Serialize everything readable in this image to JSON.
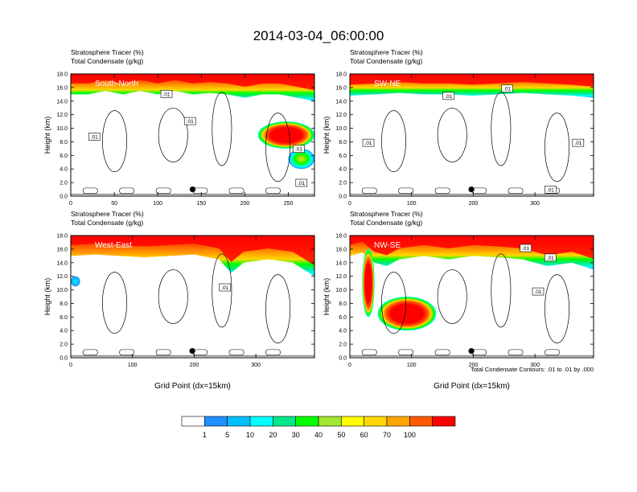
{
  "figure": {
    "title": "2014-03-04_06:00:00",
    "contour_note": "Total Condensate Contours: .01 to .01 by .000"
  },
  "colorbar": {
    "labels": [
      "1",
      "5",
      "10",
      "20",
      "30",
      "40",
      "50",
      "60",
      "70",
      "100"
    ],
    "colors": [
      "#ffffff",
      "#1e90ff",
      "#00bfff",
      "#00ffff",
      "#00e88a",
      "#00ff00",
      "#a0e632",
      "#ffff00",
      "#ffd700",
      "#ffa500",
      "#ff5a00",
      "#ff0000"
    ]
  },
  "chart_data": [
    {
      "type": "heatmap",
      "panel": "South-North",
      "title_line1": "Stratosphere Tracer   (%)",
      "title_line2": "Total Condensate   (g/kg)",
      "ylabel": "Height (km)",
      "xlabel": "",
      "xlim": [
        0,
        280
      ],
      "ylim": [
        0,
        18
      ],
      "xticks": [
        "0",
        "50",
        "100",
        "150",
        "200",
        "250"
      ],
      "yticks": [
        "0.0",
        "2.0",
        "4.0",
        "6.0",
        "8.0",
        "10.0",
        "12.0",
        "14.0",
        "16.0",
        "18.0"
      ],
      "contour_labels": [
        ".01",
        ".01",
        ".01",
        ".01",
        ".01"
      ],
      "contour_label_pos": [
        [
          110,
          15
        ],
        [
          137,
          11
        ],
        [
          27,
          8.7
        ],
        [
          262,
          6.9
        ],
        [
          265,
          1.9
        ]
      ],
      "marker": [
        140,
        1.0
      ],
      "tracer_top": [
        [
          0,
          15.0
        ],
        [
          20,
          15.0
        ],
        [
          40,
          15.5
        ],
        [
          60,
          15.0
        ],
        [
          80,
          15.5
        ],
        [
          100,
          15.0
        ],
        [
          120,
          15.5
        ],
        [
          140,
          15.0
        ],
        [
          160,
          15.2
        ],
        [
          180,
          15.0
        ],
        [
          200,
          14.5
        ],
        [
          220,
          15.0
        ],
        [
          240,
          15.0
        ],
        [
          260,
          14.5
        ],
        [
          280,
          14.0
        ]
      ],
      "tracer_blobs": [
        {
          "x": [
            215,
            280
          ],
          "y": [
            7.0,
            11.0
          ],
          "level": 90
        },
        {
          "x": [
            250,
            280
          ],
          "y": [
            4.0,
            7.0
          ],
          "level": 60
        }
      ]
    },
    {
      "type": "heatmap",
      "panel": "SW-NE",
      "title_line1": "Stratosphere Tracer   (%)",
      "title_line2": "Total Condensate   (g/kg)",
      "ylabel": "Height (km)",
      "xlabel": "",
      "xlim": [
        0,
        395
      ],
      "ylim": [
        0,
        18
      ],
      "xticks": [
        "0",
        "100",
        "200",
        "300"
      ],
      "yticks": [
        "0.0",
        "2.0",
        "4.0",
        "6.0",
        "8.0",
        "10.0",
        "12.0",
        "14.0",
        "16.0",
        "18.0"
      ],
      "contour_labels": [
        ".01",
        ".01",
        ".01",
        ".01",
        ".01"
      ],
      "contour_label_pos": [
        [
          255,
          15.8
        ],
        [
          160,
          14.7
        ],
        [
          30,
          7.8
        ],
        [
          370,
          7.8
        ],
        [
          325,
          0.9
        ]
      ],
      "marker": [
        197,
        1.0
      ],
      "tracer_top": [
        [
          0,
          14.8
        ],
        [
          40,
          15.0
        ],
        [
          80,
          15.2
        ],
        [
          120,
          15.0
        ],
        [
          160,
          15.0
        ],
        [
          200,
          14.8
        ],
        [
          240,
          15.0
        ],
        [
          280,
          15.2
        ],
        [
          320,
          15.0
        ],
        [
          360,
          14.8
        ],
        [
          395,
          14.5
        ]
      ],
      "tracer_blobs": []
    },
    {
      "type": "heatmap",
      "panel": "West-East",
      "title_line1": "Stratosphere Tracer   (%)",
      "title_line2": "Total Condensate   (g/kg)",
      "ylabel": "Height (km)",
      "xlabel": "Grid Point (dx=15km)",
      "xlim": [
        0,
        395
      ],
      "ylim": [
        0,
        18
      ],
      "xticks": [
        "0",
        "100",
        "200",
        "300"
      ],
      "yticks": [
        "0.0",
        "2.0",
        "4.0",
        "6.0",
        "8.0",
        "10.0",
        "12.0",
        "14.0",
        "16.0",
        "18.0"
      ],
      "contour_labels": [
        ".01"
      ],
      "contour_label_pos": [
        [
          250,
          10.3
        ]
      ],
      "marker": [
        197,
        1.0
      ],
      "tracer_top": [
        [
          0,
          15.0
        ],
        [
          40,
          15.2
        ],
        [
          80,
          15.0
        ],
        [
          120,
          14.8
        ],
        [
          160,
          15.0
        ],
        [
          200,
          15.2
        ],
        [
          240,
          14.5
        ],
        [
          260,
          12.5
        ],
        [
          280,
          14.0
        ],
        [
          320,
          14.5
        ],
        [
          360,
          14.0
        ],
        [
          395,
          12.0
        ]
      ],
      "tracer_blobs": [
        {
          "x": [
            0,
            15
          ],
          "y": [
            10.5,
            12.0
          ],
          "level": 5
        }
      ]
    },
    {
      "type": "heatmap",
      "panel": "NW-SE",
      "title_line1": "Stratosphere Tracer   (%)",
      "title_line2": "Total Condensate   (g/kg)",
      "ylabel": "Height (km)",
      "xlabel": "Grid Point (dx=15km)",
      "xlim": [
        0,
        395
      ],
      "ylim": [
        0,
        18
      ],
      "xticks": [
        "0",
        "100",
        "200",
        "300"
      ],
      "yticks": [
        "0.0",
        "2.0",
        "4.0",
        "6.0",
        "8.0",
        "10.0",
        "12.0",
        "14.0",
        "16.0",
        "18.0"
      ],
      "contour_labels": [
        ".01",
        ".01",
        ".01"
      ],
      "contour_label_pos": [
        [
          285,
          16.1
        ],
        [
          325,
          14.7
        ],
        [
          305,
          9.7
        ]
      ],
      "marker": [
        197,
        1.0
      ],
      "tracer_top": [
        [
          0,
          15.0
        ],
        [
          20,
          15.5
        ],
        [
          40,
          14.0
        ],
        [
          60,
          13.5
        ],
        [
          80,
          14.5
        ],
        [
          120,
          15.0
        ],
        [
          160,
          14.5
        ],
        [
          200,
          15.0
        ],
        [
          240,
          14.8
        ],
        [
          280,
          14.5
        ],
        [
          320,
          13.5
        ],
        [
          360,
          14.0
        ],
        [
          395,
          13.0
        ]
      ],
      "tracer_blobs": [
        {
          "x": [
            20,
            40
          ],
          "y": [
            6.0,
            16.0
          ],
          "level": 80
        },
        {
          "x": [
            45,
            140
          ],
          "y": [
            4.0,
            9.0
          ],
          "level": 90
        }
      ]
    }
  ]
}
